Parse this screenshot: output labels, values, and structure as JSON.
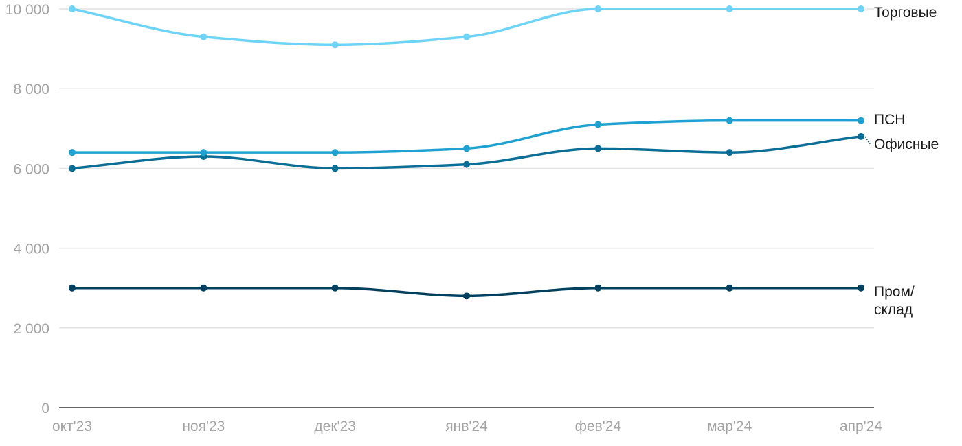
{
  "chart_data": {
    "type": "line",
    "title": "",
    "xlabel": "",
    "ylabel": "",
    "categories": [
      "окт'23",
      "ноя'23",
      "дек'23",
      "янв'24",
      "фев'24",
      "мар'24",
      "апр'24"
    ],
    "y_ticks": [
      "0",
      "2 000",
      "4 000",
      "6 000",
      "8 000",
      "10 000"
    ],
    "ylim": [
      0,
      10000
    ],
    "grid": true,
    "legend": "end-of-line labels on the right",
    "series": [
      {
        "name": "Торговые",
        "label_lines": [
          "Торговые"
        ],
        "color": "#6dd3f7",
        "values": [
          10000,
          9300,
          9100,
          9300,
          10000,
          10000,
          10000
        ]
      },
      {
        "name": "ПСН",
        "label_lines": [
          "ПСН"
        ],
        "color": "#1fa2d1",
        "values": [
          6400,
          6400,
          6400,
          6500,
          7100,
          7200,
          7200
        ]
      },
      {
        "name": "Офисные",
        "label_lines": [
          "Офисные"
        ],
        "color": "#0b6e96",
        "values": [
          6000,
          6300,
          6000,
          6100,
          6500,
          6400,
          6800
        ]
      },
      {
        "name": "Пром/склад",
        "label_lines": [
          "Пром/",
          "склад"
        ],
        "color": "#00405f",
        "values": [
          3000,
          3000,
          3000,
          2800,
          3000,
          3000,
          3000
        ]
      }
    ]
  }
}
